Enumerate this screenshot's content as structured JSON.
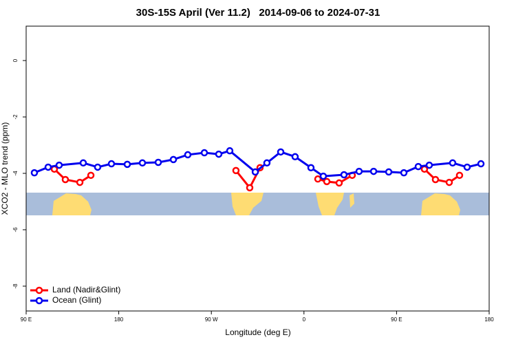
{
  "chart_data": {
    "type": "line",
    "title": "30S-15S April (Ver 11.2)   2014-09-06 to 2024-07-31",
    "x_label": "Longitude (deg E)",
    "y_label": "XCO2 - MLO trend (ppm)",
    "xlim": [
      90,
      540
    ],
    "ylim": [
      -8.88,
      1.22
    ],
    "xticks": [
      {
        "value": 90,
        "label": "90 E"
      },
      {
        "value": 180,
        "label": "180"
      },
      {
        "value": 270,
        "label": "90 W"
      },
      {
        "value": 360,
        "label": "0"
      },
      {
        "value": 450,
        "label": "90 E"
      },
      {
        "value": 540,
        "label": "180"
      }
    ],
    "yticks": [
      0,
      -2,
      -4,
      -6,
      -8
    ],
    "legend": "bottom-left",
    "series": [
      {
        "name": "Land (Nadir&Glint)",
        "color": "#ff0000",
        "x": [
          117.4,
          128.1,
          142.2,
          152.9,
          null,
          293.9,
          307.3,
          317.3,
          null,
          373.5,
          382.2,
          394.2,
          406.9,
          null,
          477.1,
          487.8,
          501.2,
          511.2
        ],
        "values": [
          -3.85,
          -4.22,
          -4.32,
          -4.07,
          null,
          -3.9,
          -4.51,
          -3.8,
          null,
          -4.2,
          -4.29,
          -4.34,
          -4.07,
          null,
          -3.85,
          -4.22,
          -4.32,
          -4.07
        ]
      },
      {
        "name": "Ocean (Glint)",
        "color": "#0000ee",
        "x": [
          98.0,
          111.4,
          122.1,
          145.5,
          159.5,
          172.9,
          188.3,
          203.0,
          218.4,
          233.1,
          247.1,
          263.2,
          277.2,
          287.9,
          312.7,
          324.0,
          337.4,
          351.4,
          366.8,
          378.8,
          398.9,
          413.6,
          427.7,
          442.4,
          457.1,
          471.1,
          481.8,
          504.5,
          518.6,
          532.0
        ],
        "values": [
          -3.98,
          -3.78,
          -3.71,
          -3.63,
          -3.78,
          -3.66,
          -3.68,
          -3.63,
          -3.61,
          -3.51,
          -3.34,
          -3.27,
          -3.32,
          -3.2,
          -3.95,
          -3.63,
          -3.24,
          -3.41,
          -3.8,
          -4.1,
          -4.05,
          -3.93,
          -3.93,
          -3.95,
          -3.98,
          -3.76,
          -3.71,
          -3.63,
          -3.78,
          -3.66
        ]
      }
    ]
  }
}
